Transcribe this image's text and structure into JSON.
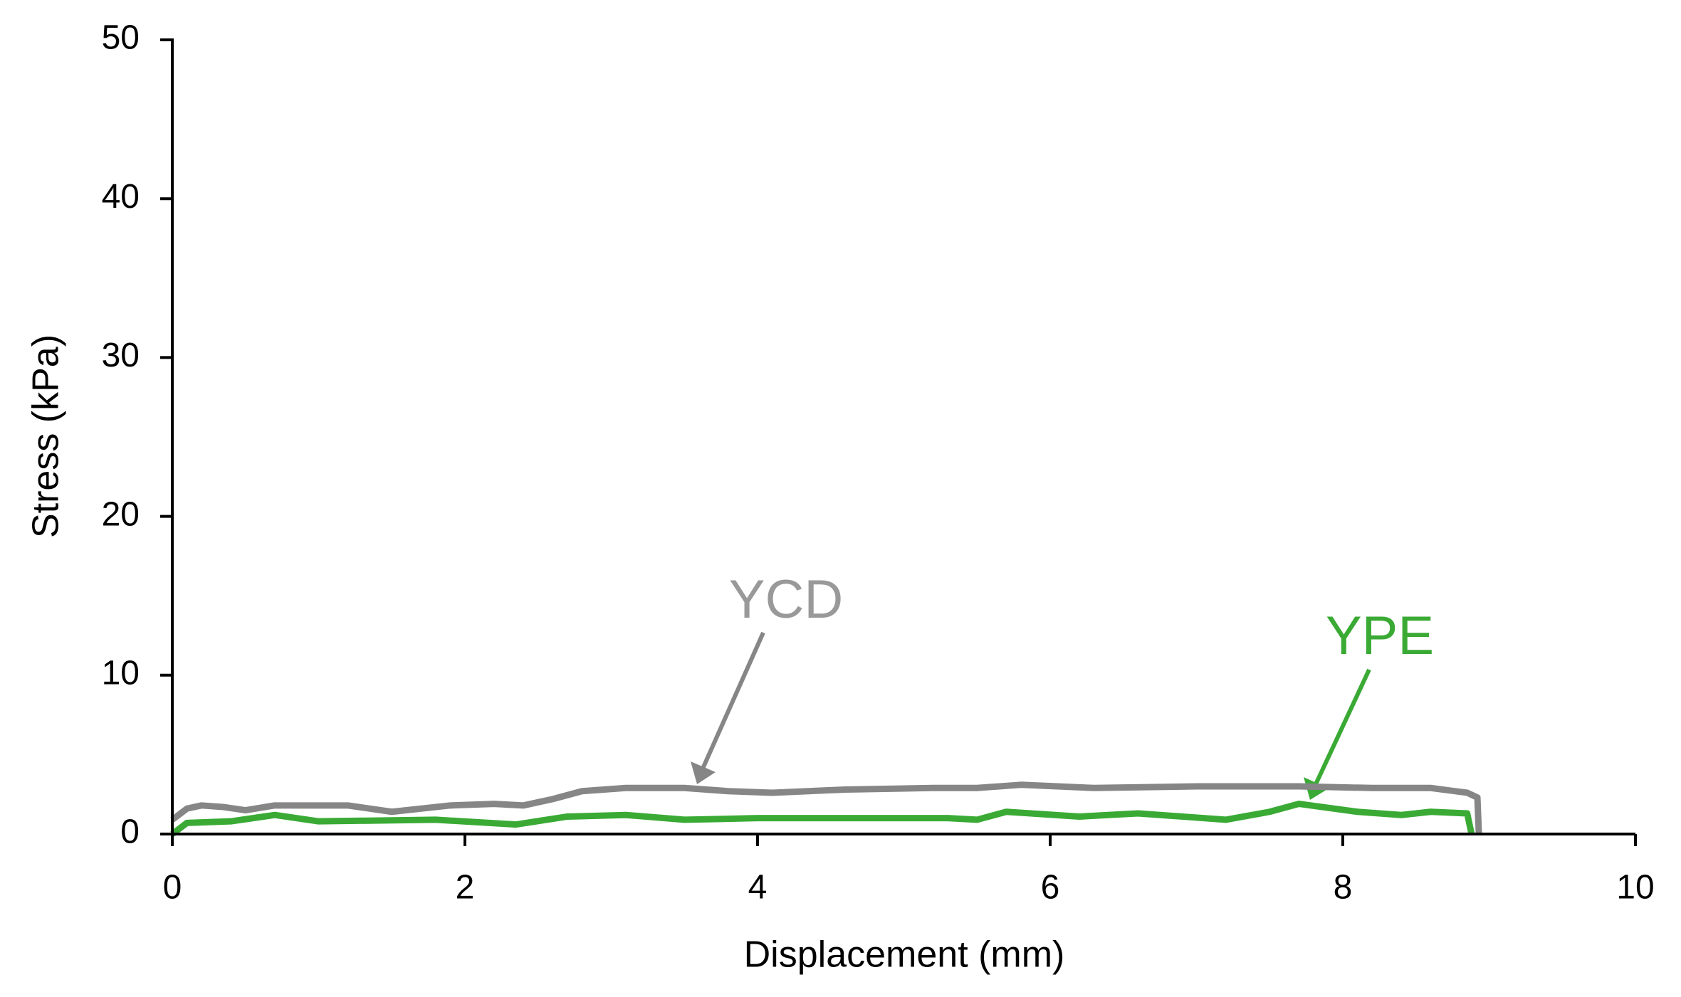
{
  "chart_data": {
    "type": "line",
    "xlabel": "Displacement (mm)",
    "ylabel": "Stress (kPa)",
    "xlim": [
      0,
      10
    ],
    "xticks": [
      0,
      2,
      4,
      6,
      8,
      10
    ],
    "ylim": [
      0,
      50
    ],
    "yticks": [
      0,
      10,
      20,
      30,
      40,
      50
    ],
    "grid": false,
    "series": [
      {
        "name": "YCD",
        "color": "#868686",
        "x": [
          0,
          0.1,
          0.2,
          0.35,
          0.5,
          0.7,
          1.0,
          1.2,
          1.5,
          1.9,
          2.2,
          2.4,
          2.6,
          2.8,
          3.1,
          3.5,
          3.8,
          4.1,
          4.6,
          5.2,
          5.5,
          5.8,
          6.3,
          7.0,
          7.7,
          8.2,
          8.6,
          8.85,
          8.92,
          8.93
        ],
        "values": [
          0.9,
          1.6,
          1.8,
          1.7,
          1.5,
          1.8,
          1.8,
          1.8,
          1.4,
          1.8,
          1.9,
          1.8,
          2.2,
          2.7,
          2.9,
          2.9,
          2.7,
          2.6,
          2.8,
          2.9,
          2.9,
          3.1,
          2.9,
          3.0,
          3.0,
          2.9,
          2.9,
          2.6,
          2.3,
          0
        ]
      },
      {
        "name": "YPE",
        "color": "#3aaa35",
        "x": [
          0,
          0.1,
          0.4,
          0.7,
          1.0,
          1.8,
          2.35,
          2.7,
          3.1,
          3.5,
          4.0,
          5.3,
          5.5,
          5.7,
          6.2,
          6.6,
          7.2,
          7.5,
          7.7,
          8.1,
          8.4,
          8.6,
          8.85,
          8.88
        ],
        "values": [
          0,
          0.7,
          0.8,
          1.2,
          0.8,
          0.9,
          0.6,
          1.1,
          1.2,
          0.9,
          1.0,
          1.0,
          0.9,
          1.4,
          1.1,
          1.3,
          0.9,
          1.4,
          1.9,
          1.4,
          1.2,
          1.4,
          1.3,
          0
        ]
      }
    ]
  }
}
